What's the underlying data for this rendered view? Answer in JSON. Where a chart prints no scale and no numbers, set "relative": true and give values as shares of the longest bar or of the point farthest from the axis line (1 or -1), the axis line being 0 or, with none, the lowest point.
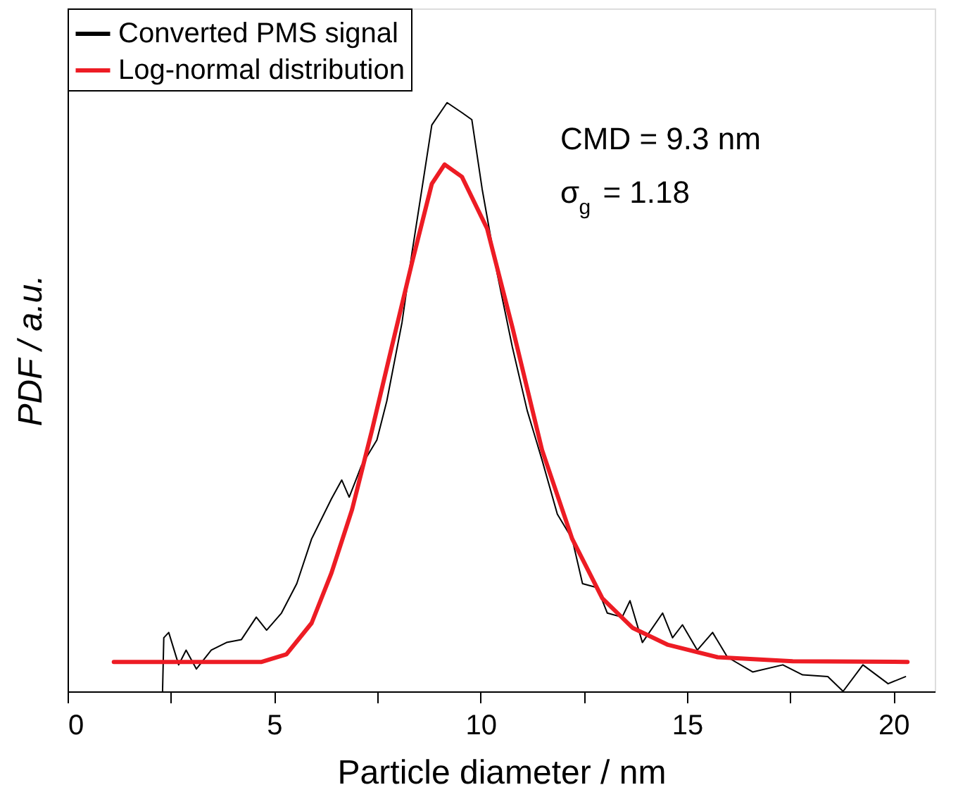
{
  "chart_data": {
    "type": "line",
    "relative": true,
    "xlabel": "Particle diameter / nm",
    "ylabel": "PDF / a.u.",
    "xlim": [
      0,
      21
    ],
    "xticks": [
      0,
      {
        "value": 2.5,
        "label": null
      },
      5,
      {
        "value": 7.5,
        "label": null
      },
      10,
      {
        "value": 12.5,
        "label": null
      },
      15,
      {
        "value": 17.5,
        "label": null
      },
      20
    ],
    "legend": "top left",
    "grid": false,
    "annotations": [
      "CMD = 9.3 nm",
      "σ$_{g}$ = 1.18"
    ],
    "series": [
      {
        "name": "Converted PMS signal",
        "color": "#000000",
        "x": [
          2.3,
          2.33,
          2.45,
          2.69,
          2.87,
          3.12,
          3.48,
          3.85,
          4.21,
          4.57,
          4.82,
          5.18,
          5.55,
          5.91,
          6.39,
          6.64,
          6.82,
          7.12,
          7.49,
          7.73,
          8.1,
          8.34,
          8.58,
          8.82,
          9.19,
          9.55,
          9.79,
          10.04,
          10.4,
          10.77,
          11.13,
          11.49,
          11.86,
          12.22,
          12.47,
          12.83,
          13.07,
          13.43,
          13.62,
          13.92,
          14.41,
          14.65,
          14.89,
          15.25,
          15.62,
          15.98,
          16.59,
          17.32,
          17.8,
          18.41,
          18.78,
          19.26,
          19.87,
          20.29
        ],
        "values": [
          0,
          0.091,
          0.1,
          0.045,
          0.07,
          0.038,
          0.07,
          0.083,
          0.088,
          0.126,
          0.104,
          0.133,
          0.183,
          0.259,
          0.327,
          0.359,
          0.33,
          0.384,
          0.427,
          0.493,
          0.627,
          0.745,
          0.853,
          0.962,
          1.0,
          0.983,
          0.971,
          0.853,
          0.711,
          0.585,
          0.477,
          0.393,
          0.301,
          0.259,
          0.183,
          0.176,
          0.133,
          0.126,
          0.154,
          0.083,
          0.133,
          0.091,
          0.113,
          0.07,
          0.1,
          0.058,
          0.033,
          0.045,
          0.028,
          0.025,
          0,
          0.045,
          0.013,
          0.025
        ]
      },
      {
        "name": "Log-normal distribution",
        "color": "#ed1c24",
        "x": [
          1.12,
          4.7,
          5.3,
          5.91,
          6.39,
          6.89,
          7.37,
          7.85,
          8.34,
          8.82,
          9.13,
          9.55,
          10.16,
          10.77,
          11.49,
          12.22,
          12.95,
          13.68,
          14.54,
          15.74,
          17.56,
          20.34
        ],
        "values": [
          0.05,
          0.05,
          0.063,
          0.116,
          0.201,
          0.309,
          0.443,
          0.585,
          0.728,
          0.862,
          0.895,
          0.874,
          0.786,
          0.619,
          0.41,
          0.259,
          0.158,
          0.108,
          0.079,
          0.058,
          0.051,
          0.05
        ]
      }
    ]
  }
}
